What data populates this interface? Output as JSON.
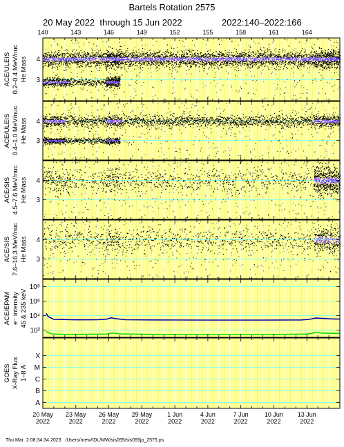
{
  "title": "Bartels Rotation 2575",
  "subtitle_dates": "20 May 2022  through 15 Jun 2022",
  "subtitle_doy": "2022:140–2022:166",
  "footer": "Thu Mar  2 08:34:34 2023   /Users/mew/IDL/MW/sis055/sis055jp_2575.ps",
  "colors": {
    "background": "#ffffff",
    "grid_yellow": "#ffff99",
    "grid_cyan": "#66ffff",
    "core_blue": "#3030ff",
    "core_magenta": "#cc66ff",
    "line_blue": "#0000aa",
    "line_green": "#00dd00"
  },
  "chart_data": {
    "type": "scatter",
    "x_unit": "day of year 2022",
    "xlim": [
      140,
      167
    ],
    "top_ticks": [
      "140",
      "143",
      "146",
      "149",
      "152",
      "155",
      "158",
      "161",
      "164"
    ],
    "top_tick_values": [
      140,
      143,
      146,
      149,
      152,
      155,
      158,
      161,
      164
    ],
    "bottom_ticks": [
      {
        "doy": 140,
        "day": "20 May",
        "year": "2022"
      },
      {
        "doy": 143,
        "day": "23 May",
        "year": "2022"
      },
      {
        "doy": 146,
        "day": "26 May",
        "year": "2022"
      },
      {
        "doy": 149,
        "day": "29 May",
        "year": "2022"
      },
      {
        "doy": 152,
        "day": "1 Jun",
        "year": "2022"
      },
      {
        "doy": 155,
        "day": "4 Jun",
        "year": "2022"
      },
      {
        "doy": 158,
        "day": "7 Jun",
        "year": "2022"
      },
      {
        "doy": 161,
        "day": "10 Jun",
        "year": "2022"
      },
      {
        "doy": 164,
        "day": "13 Jun",
        "year": "2022"
      }
    ],
    "panels": [
      {
        "type": "scatter",
        "label_lines": [
          "ACE/ULEIS",
          "0.2–0.4 MeV/nuc",
          "He Mass"
        ],
        "ylim": [
          2.0,
          5.0
        ],
        "yticks": [
          "3",
          "4"
        ],
        "ytick_values": [
          3,
          4
        ],
        "bands": [
          {
            "center": 4.0,
            "spread": 0.18,
            "level": "high"
          },
          {
            "center": 2.9,
            "spread": 0.1,
            "level": "medium",
            "range": [
              140,
              147
            ]
          }
        ],
        "events": [
          {
            "range": [
              140,
              142.5
            ],
            "level": "high"
          },
          {
            "range": [
              145.7,
              147.2
            ],
            "level": "very_high"
          },
          {
            "range": [
              164.6,
              167
            ],
            "level": "very_high"
          }
        ]
      },
      {
        "type": "scatter",
        "label_lines": [
          "ACE/ULEIS",
          "0.4–1.0 MeV/nuc",
          "He Mass"
        ],
        "ylim": [
          2.0,
          5.0
        ],
        "yticks": [
          "3",
          "4"
        ],
        "ytick_values": [
          3,
          4
        ],
        "bands": [
          {
            "center": 4.0,
            "spread": 0.15,
            "level": "medium"
          },
          {
            "center": 3.0,
            "spread": 0.08,
            "level": "medium",
            "range": [
              140,
              147
            ]
          }
        ],
        "events": [
          {
            "range": [
              140,
              142
            ],
            "level": "high"
          },
          {
            "range": [
              145.7,
              147.2
            ],
            "level": "high"
          },
          {
            "range": [
              164.6,
              167
            ],
            "level": "high"
          }
        ]
      },
      {
        "type": "scatter",
        "label_lines": [
          "ACE/SIS",
          "4.5–7.6 MeV/nuc",
          "He Mass"
        ],
        "ylim": [
          2.0,
          5.0
        ],
        "yticks": [
          "3",
          "4"
        ],
        "ytick_values": [
          3,
          4
        ],
        "bands": [
          {
            "center": 4.0,
            "spread": 0.3,
            "level": "low"
          }
        ],
        "events": [
          {
            "range": [
              140,
              142.5
            ],
            "level": "medium"
          },
          {
            "range": [
              145.7,
              147
            ],
            "level": "medium"
          },
          {
            "range": [
              164.6,
              167
            ],
            "level": "very_high"
          }
        ]
      },
      {
        "type": "scatter",
        "label_lines": [
          "ACE/SIS",
          "7.6–16.3 MeV/nuc",
          "He Mass"
        ],
        "ylim": [
          2.0,
          5.0
        ],
        "yticks": [
          "3",
          "4"
        ],
        "ytick_values": [
          3,
          4
        ],
        "bands": [
          {
            "center": 4.0,
            "spread": 0.3,
            "level": "low"
          }
        ],
        "events": [
          {
            "range": [
              145.7,
              147
            ],
            "level": "medium"
          },
          {
            "range": [
              164.6,
              167
            ],
            "level": "high"
          }
        ]
      },
      {
        "type": "line",
        "label_lines": [
          "ACE/EPAM",
          "e⁻ intensity",
          "45 & 235 keV"
        ],
        "yscale": "log",
        "ylim": [
          10,
          1000000000
        ],
        "yticks": [
          "10²",
          "10⁴",
          "10⁶",
          "10⁸"
        ],
        "ytick_values": [
          100,
          10000,
          1000000,
          100000000
        ],
        "series": [
          {
            "color": "line_blue",
            "points": [
              [
                140.3,
                20000
              ],
              [
                140.5,
                7000
              ],
              [
                141,
                3000
              ],
              [
                143,
                2600
              ],
              [
                145,
                2700
              ],
              [
                145.8,
                3200
              ],
              [
                146.2,
                5000
              ],
              [
                146.6,
                3800
              ],
              [
                147.5,
                2700
              ],
              [
                150,
                2500
              ],
              [
                155,
                2400
              ],
              [
                160,
                2400
              ],
              [
                163.5,
                2500
              ],
              [
                164.2,
                3000
              ],
              [
                164.8,
                4500
              ],
              [
                165.5,
                4000
              ],
              [
                166.2,
                3500
              ],
              [
                167,
                3300
              ]
            ]
          },
          {
            "color": "line_green",
            "points": [
              [
                140.3,
                60
              ],
              [
                140.8,
                30
              ],
              [
                142,
                25
              ],
              [
                145.8,
                28
              ],
              [
                146.3,
                40
              ],
              [
                147,
                30
              ],
              [
                150,
                25
              ],
              [
                155,
                24
              ],
              [
                160,
                24
              ],
              [
                164,
                28
              ],
              [
                164.8,
                45
              ],
              [
                165.5,
                38
              ],
              [
                167,
                35
              ]
            ]
          }
        ]
      },
      {
        "type": "line",
        "label_lines": [
          "GOES",
          "X-Ray Flux",
          "1–8 A"
        ],
        "ylim": [
          0,
          6
        ],
        "yticks": [
          "A",
          "B",
          "C",
          "M",
          "X"
        ],
        "ytick_values": [
          0.5,
          1.5,
          2.5,
          3.5,
          4.5
        ],
        "series": []
      }
    ]
  }
}
